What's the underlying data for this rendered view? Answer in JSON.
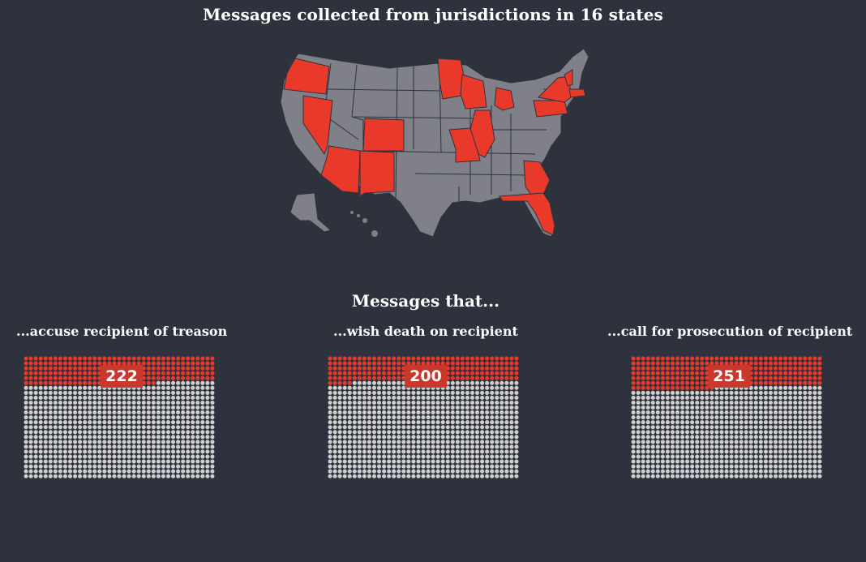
{
  "title": "Messages collected from jurisdictions in 16 states",
  "map": {
    "highlighted_states": [
      "Oregon",
      "Nevada",
      "Arizona",
      "Colorado",
      "New Mexico",
      "Minnesota",
      "Wisconsin",
      "Michigan",
      "Illinois",
      "Missouri",
      "Georgia",
      "Florida",
      "Pennsylvania",
      "New York",
      "Vermont",
      "Massachusetts"
    ],
    "colors": {
      "highlighted": "#e8392b",
      "other": "#7f8088",
      "border": "#2e323d"
    }
  },
  "section_title": "Messages that...",
  "chart_data": [
    {
      "type": "waffle",
      "label": "...accuse recipient of treason",
      "value": 222,
      "total": 975
    },
    {
      "type": "waffle",
      "label": "...wish death on recipient",
      "value": 200,
      "total": 975
    },
    {
      "type": "waffle",
      "label": "...call for prosecution of recipient",
      "value": 251,
      "total": 975
    }
  ],
  "colors": {
    "highlight": "#e8392b",
    "rest": "#cfcfcf",
    "background": "#2e323d"
  }
}
